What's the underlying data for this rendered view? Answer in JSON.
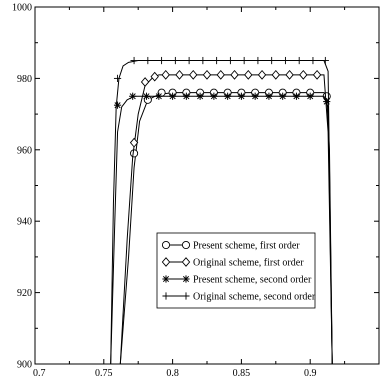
{
  "chart_data": {
    "type": "line",
    "title": "",
    "xlabel": "",
    "ylabel": "",
    "xlim": [
      0.7,
      0.95
    ],
    "ylim": [
      900,
      1000
    ],
    "x_ticks": [
      0.7,
      0.75,
      0.8,
      0.85,
      0.9
    ],
    "x_tick_labels": [
      "0.7",
      "0.75",
      "0.8",
      "0.85",
      "0.9"
    ],
    "y_ticks": [
      900,
      920,
      940,
      960,
      980,
      1000
    ],
    "y_tick_labels": [
      "900",
      "920",
      "940",
      "960",
      "980",
      "1000"
    ],
    "grid": false,
    "legend_position": "lower-center",
    "series": [
      {
        "name": "Present scheme, first order",
        "marker": "circle",
        "x": [
          0.762,
          0.768,
          0.772,
          0.776,
          0.782,
          0.79,
          0.8,
          0.81,
          0.82,
          0.83,
          0.84,
          0.85,
          0.86,
          0.87,
          0.88,
          0.89,
          0.9,
          0.91,
          0.912,
          0.914,
          0.916
        ],
        "y": [
          900,
          930,
          955,
          968,
          974,
          975.5,
          976,
          976,
          976,
          976,
          976,
          976,
          976,
          976,
          976,
          976,
          976,
          976,
          975,
          960,
          900
        ],
        "marker_x": [
          0.772,
          0.782,
          0.792,
          0.8,
          0.81,
          0.82,
          0.83,
          0.84,
          0.85,
          0.86,
          0.87,
          0.88,
          0.89,
          0.9,
          0.912
        ],
        "marker_y": [
          959,
          974,
          976,
          976,
          976,
          976,
          976,
          976,
          976,
          976,
          976,
          976,
          976,
          976,
          975
        ]
      },
      {
        "name": "Original scheme, first order",
        "marker": "diamond",
        "x": [
          0.762,
          0.767,
          0.771,
          0.775,
          0.78,
          0.785,
          0.79,
          0.8,
          0.81,
          0.82,
          0.83,
          0.84,
          0.85,
          0.86,
          0.87,
          0.88,
          0.89,
          0.9,
          0.91,
          0.913,
          0.916
        ],
        "y": [
          900,
          935,
          958,
          970,
          978,
          980,
          981,
          981,
          981,
          981,
          981,
          981,
          981,
          981,
          981,
          981,
          981,
          981,
          981,
          965,
          900
        ],
        "marker_x": [
          0.772,
          0.78,
          0.787,
          0.795,
          0.805,
          0.815,
          0.825,
          0.835,
          0.845,
          0.855,
          0.865,
          0.875,
          0.885,
          0.895,
          0.905
        ],
        "marker_y": [
          962,
          979,
          980.5,
          981,
          981,
          981,
          981,
          981,
          981,
          981,
          981,
          981,
          981,
          981,
          981
        ]
      },
      {
        "name": "Present scheme, second order",
        "marker": "asterisk",
        "x": [
          0.755,
          0.758,
          0.76,
          0.763,
          0.767,
          0.772,
          0.78,
          0.79,
          0.8,
          0.81,
          0.82,
          0.83,
          0.84,
          0.85,
          0.86,
          0.87,
          0.88,
          0.89,
          0.9,
          0.91,
          0.913,
          0.916
        ],
        "y": [
          900,
          940,
          965,
          972,
          974,
          975,
          975,
          975,
          975,
          975,
          975,
          975,
          975,
          975,
          975,
          975,
          975,
          975,
          975,
          975,
          972,
          900
        ],
        "marker_x": [
          0.76,
          0.771,
          0.781,
          0.79,
          0.8,
          0.81,
          0.82,
          0.83,
          0.84,
          0.85,
          0.86,
          0.87,
          0.88,
          0.89,
          0.9,
          0.912
        ],
        "marker_y": [
          972.5,
          975,
          975,
          975,
          975,
          975,
          975,
          975,
          975,
          975,
          975,
          975,
          975,
          975,
          975,
          973.5
        ]
      },
      {
        "name": "Original scheme, second order",
        "marker": "plus",
        "x": [
          0.755,
          0.757,
          0.759,
          0.761,
          0.764,
          0.768,
          0.775,
          0.78,
          0.79,
          0.8,
          0.81,
          0.82,
          0.83,
          0.84,
          0.85,
          0.86,
          0.87,
          0.88,
          0.89,
          0.9,
          0.91,
          0.913,
          0.916
        ],
        "y": [
          900,
          945,
          972,
          980,
          983.5,
          984.5,
          985,
          985,
          985,
          985,
          985,
          985,
          985,
          985,
          985,
          985,
          985,
          985,
          985,
          985,
          985,
          982,
          900
        ],
        "marker_x": [
          0.76,
          0.772,
          0.782,
          0.792,
          0.802,
          0.812,
          0.822,
          0.832,
          0.842,
          0.852,
          0.862,
          0.872,
          0.882,
          0.892,
          0.902,
          0.911
        ],
        "marker_y": [
          980,
          985,
          985,
          985,
          985,
          985,
          985,
          985,
          985,
          985,
          985,
          985,
          985,
          985,
          985,
          985
        ]
      }
    ]
  }
}
